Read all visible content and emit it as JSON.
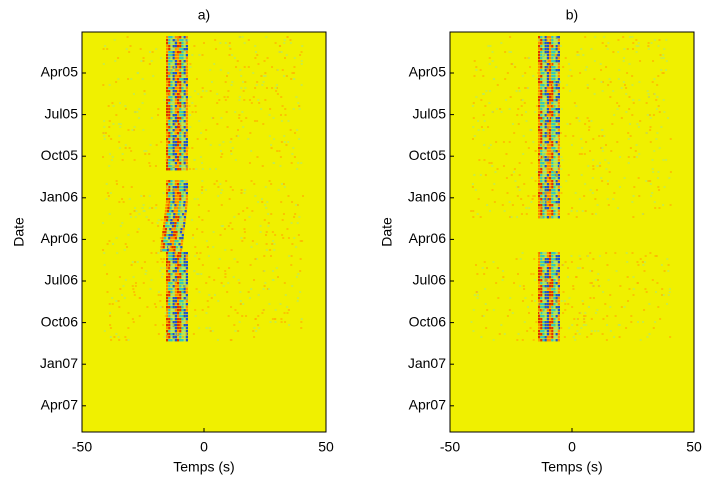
{
  "chart_data": [
    {
      "type": "heatmap",
      "title": "a)",
      "xlabel": "Temps (s)",
      "ylabel": "Date",
      "xlim": [
        -50,
        50
      ],
      "xticks": [
        -50,
        0,
        50
      ],
      "categories": [
        "Apr05",
        "Jul05",
        "Oct05",
        "Jan06",
        "Apr06",
        "Jul06",
        "Oct06",
        "Jan07",
        "Apr07"
      ]
    },
    {
      "type": "heatmap",
      "title": "b)",
      "xlabel": "Temps (s)",
      "ylabel": "Date",
      "xlim": [
        -50,
        50
      ],
      "xticks": [
        -50,
        0,
        50
      ],
      "categories": [
        "Apr05",
        "Jul05",
        "Oct05",
        "Jan06",
        "Apr06",
        "Jul06",
        "Oct06",
        "Jan07",
        "Apr07"
      ]
    }
  ]
}
